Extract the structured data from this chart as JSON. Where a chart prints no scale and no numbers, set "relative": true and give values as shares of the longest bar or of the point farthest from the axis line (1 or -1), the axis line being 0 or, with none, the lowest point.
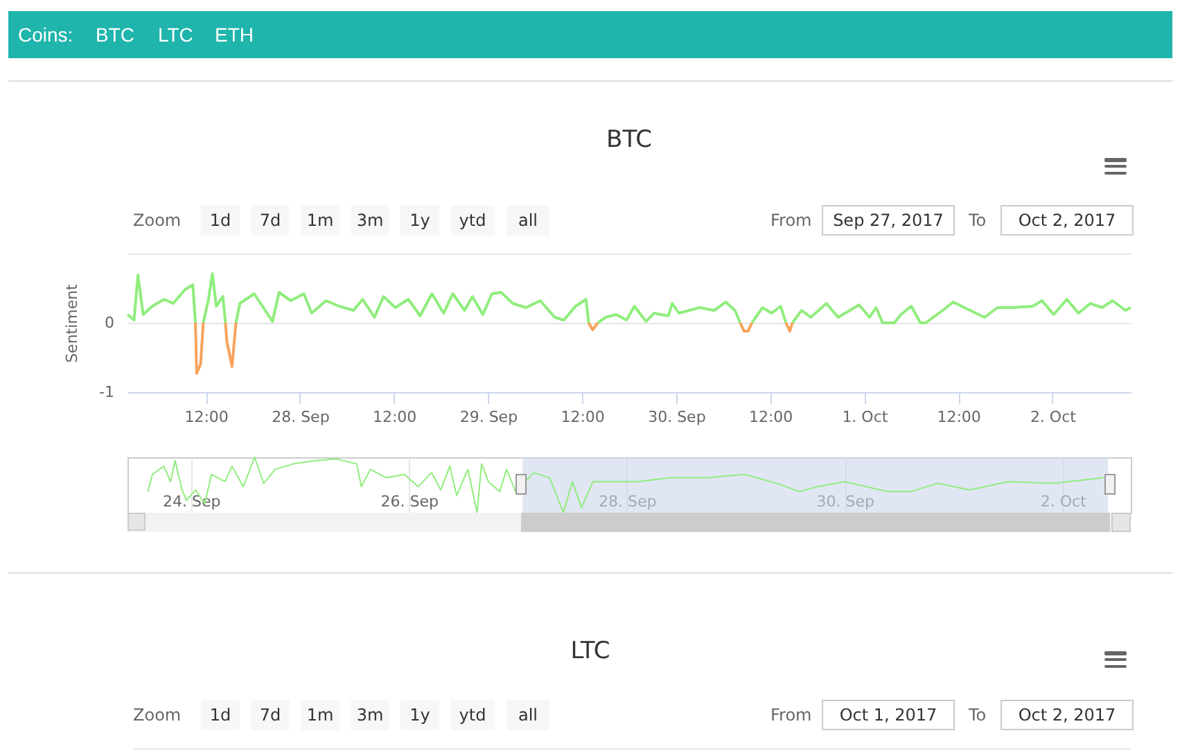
{
  "chart_data": [
    {
      "type": "other",
      "title": "Coins:",
      "annotations": [
        "BTC",
        "LTC",
        "ETH"
      ]
    },
    {
      "type": "line",
      "title": "BTC",
      "ylabel": "Sentiment",
      "annotations": [
        "Zoom",
        "1d",
        "7d",
        "1m",
        "3m",
        "1y",
        "ytd",
        "all",
        "From",
        "Sep 27, 2017",
        "To",
        "Oct 2, 2017"
      ],
      "xlim": [
        "2017-09-27T02:00",
        "2017-10-02T10:00"
      ],
      "xticks": [
        {
          "value": "2017-09-27T12:00",
          "label": "12:00"
        },
        {
          "value": "2017-09-28",
          "label": "28. Sep"
        },
        {
          "value": "2017-09-28T12:00",
          "label": "12:00"
        },
        {
          "value": "2017-09-29",
          "label": "29. Sep"
        },
        {
          "value": "2017-09-29T12:00",
          "label": "12:00"
        },
        {
          "value": "2017-09-30",
          "label": "30. Sep"
        },
        {
          "value": "2017-09-30T12:00",
          "label": "12:00"
        },
        {
          "value": "2017-10-01",
          "label": "1. Oct"
        },
        {
          "value": "2017-10-01T12:00",
          "label": "12:00"
        },
        {
          "value": "2017-10-02",
          "label": "2. Oct"
        }
      ],
      "ylim": [
        -1,
        1
      ],
      "yticks": [
        -1,
        0,
        {
          "value": 1,
          "label": null
        }
      ],
      "grid": "y",
      "x": [
        "2017-09-27T02:00",
        "2017-09-27T02:50",
        "2017-09-27T03:20",
        "2017-09-27T04:00",
        "2017-09-27T05:10",
        "2017-09-27T06:40",
        "2017-09-27T07:50",
        "2017-09-27T09:20",
        "2017-09-27T10:20",
        "2017-09-27T10:40",
        "2017-09-27T10:50",
        "2017-09-27T11:20",
        "2017-09-27T11:40",
        "2017-09-27T12:20",
        "2017-09-27T12:50",
        "2017-09-27T13:20",
        "2017-09-27T14:10",
        "2017-09-27T14:30",
        "2017-09-27T14:40",
        "2017-09-27T15:20",
        "2017-09-27T15:50",
        "2017-09-27T16:20",
        "2017-09-27T18:10",
        "2017-09-27T19:20",
        "2017-09-27T20:30",
        "2017-09-27T21:20",
        "2017-09-27T22:50",
        "2017-09-28T00:30",
        "2017-09-28T01:30",
        "2017-09-28T03:20",
        "2017-09-28T05:00",
        "2017-09-28T06:50",
        "2017-09-28T08:00",
        "2017-09-28T09:30",
        "2017-09-28T10:40",
        "2017-09-28T12:10",
        "2017-09-28T13:50",
        "2017-09-28T15:20",
        "2017-09-28T16:50",
        "2017-09-28T18:20",
        "2017-09-28T19:30",
        "2017-09-28T21:00",
        "2017-09-28T22:00",
        "2017-09-28T23:20",
        "2017-09-29T00:30",
        "2017-09-29T01:40",
        "2017-09-29T03:10",
        "2017-09-29T04:50",
        "2017-09-29T06:40",
        "2017-09-29T08:30",
        "2017-09-29T09:40",
        "2017-09-29T11:10",
        "2017-09-29T12:30",
        "2017-09-29T12:50",
        "2017-09-29T13:20",
        "2017-09-29T14:00",
        "2017-09-29T15:00",
        "2017-09-29T16:20",
        "2017-09-29T17:40",
        "2017-09-29T18:40",
        "2017-09-29T20:10",
        "2017-09-29T21:10",
        "2017-09-29T23:00",
        "2017-09-29T23:30",
        "2017-09-30T00:20",
        "2017-09-30T03:00",
        "2017-09-30T04:50",
        "2017-09-30T06:20",
        "2017-09-30T07:30",
        "2017-09-30T08:10",
        "2017-09-30T08:40",
        "2017-09-30T09:10",
        "2017-09-30T09:40",
        "2017-09-30T11:00",
        "2017-09-30T12:10",
        "2017-09-30T13:20",
        "2017-09-30T14:00",
        "2017-09-30T14:30",
        "2017-09-30T14:50",
        "2017-09-30T16:00",
        "2017-09-30T17:10",
        "2017-09-30T19:10",
        "2017-09-30T20:40",
        "2017-09-30T23:20",
        "2017-10-01T00:40",
        "2017-10-01T01:30",
        "2017-10-01T02:20",
        "2017-10-01T03:10",
        "2017-10-01T03:50",
        "2017-10-01T04:40",
        "2017-10-01T06:00",
        "2017-10-01T07:10",
        "2017-10-01T07:30",
        "2017-10-01T07:50",
        "2017-10-01T10:00",
        "2017-10-01T11:20",
        "2017-10-01T13:30",
        "2017-10-01T15:20",
        "2017-10-01T17:00",
        "2017-10-01T18:50",
        "2017-10-01T21:30",
        "2017-10-01T22:40",
        "2017-10-02T00:10",
        "2017-10-02T01:50",
        "2017-10-02T03:20",
        "2017-10-02T04:50",
        "2017-10-02T06:20",
        "2017-10-02T07:40",
        "2017-10-02T09:20",
        "2017-10-02T10:00"
      ],
      "series": [
        {
          "color": "#90ed7d",
          "values": [
            0.12,
            0.04,
            0.69,
            0.12,
            0.24,
            0.34,
            0.28,
            0.48,
            0.55,
            0,
            null,
            null,
            0,
            0.34,
            0.71,
            0.24,
            0.38,
            0,
            null,
            null,
            0,
            0.28,
            0.42,
            0.22,
            0.02,
            0.44,
            0.32,
            0.42,
            0.14,
            0.32,
            0.24,
            0.18,
            0.34,
            0.08,
            0.38,
            0.22,
            0.34,
            0.1,
            0.42,
            0.14,
            0.42,
            0.18,
            0.38,
            0.12,
            0.42,
            0.44,
            0.28,
            0.22,
            0.32,
            0.08,
            0.04,
            0.24,
            0.34,
            0,
            null,
            0,
            0.08,
            0.12,
            0.04,
            0.24,
            0.02,
            0.14,
            0.1,
            0.28,
            0.14,
            0.22,
            0.18,
            0.3,
            0.18,
            0,
            null,
            null,
            0,
            0.22,
            0.14,
            0.24,
            0,
            null,
            0,
            0.18,
            0.08,
            0.28,
            0.08,
            0.26,
            0.08,
            0.22,
            0,
            0,
            0,
            0.12,
            0.24,
            0,
            0,
            0,
            0.18,
            0.3,
            0.18,
            0.08,
            0.22,
            0.22,
            0.24,
            0.32,
            0.12,
            0.34,
            0.14,
            0.28,
            0.22,
            0.32,
            0.18,
            0.22
          ]
        },
        {
          "color": "#f7a35c",
          "values": [
            null,
            null,
            null,
            null,
            null,
            null,
            null,
            null,
            null,
            0,
            -0.73,
            -0.59,
            0,
            null,
            null,
            null,
            null,
            0,
            -0.26,
            -0.63,
            0,
            null,
            null,
            null,
            null,
            null,
            null,
            null,
            null,
            null,
            null,
            null,
            null,
            null,
            null,
            null,
            null,
            null,
            null,
            null,
            null,
            null,
            null,
            null,
            null,
            null,
            null,
            null,
            null,
            null,
            null,
            null,
            null,
            0,
            -0.1,
            0,
            null,
            null,
            null,
            null,
            null,
            null,
            null,
            null,
            null,
            null,
            null,
            null,
            null,
            0,
            -0.12,
            -0.12,
            0,
            null,
            null,
            null,
            0,
            -0.12,
            0,
            null,
            null,
            null,
            null,
            null,
            null,
            null,
            null,
            null,
            null,
            null,
            null,
            null,
            null,
            null,
            null,
            null,
            null,
            null,
            null,
            null,
            null,
            null,
            null,
            null,
            null,
            null,
            null,
            null,
            null,
            null
          ]
        }
      ]
    },
    {
      "type": "line",
      "relative": true,
      "tick_labels": "x",
      "grid": "x",
      "xlim": [
        "2017-09-23T10:00",
        "2017-10-02T15:00"
      ],
      "xticks": [
        {
          "value": "2017-09-24",
          "label": "24. Sep"
        },
        {
          "value": "2017-09-26",
          "label": "26. Sep"
        },
        {
          "value": "2017-09-28",
          "label": "28. Sep"
        },
        {
          "value": "2017-09-30",
          "label": "30. Sep"
        },
        {
          "value": "2017-10-02",
          "label": "2. Oct"
        }
      ],
      "bands": [
        {
          "axis": "x",
          "from": "2017-09-27T01:00",
          "to": "2017-10-02T10:00",
          "color": "#ccd6eb"
        }
      ],
      "x": [
        "2017-09-23T14:30",
        "2017-09-23T15:30",
        "2017-09-23T18:00",
        "2017-09-23T19:30",
        "2017-09-23T20:30",
        "2017-09-23T22:00",
        "2017-09-23T23:00",
        "2017-09-24T01:00",
        "2017-09-24T03:00",
        "2017-09-24T04:30",
        "2017-09-24T07:30",
        "2017-09-24T09:00",
        "2017-09-24T11:30",
        "2017-09-24T14:00",
        "2017-09-24T16:00",
        "2017-09-24T18:30",
        "2017-09-24T22:30",
        "2017-09-25T03:30",
        "2017-09-25T08:00",
        "2017-09-25T12:30",
        "2017-09-25T13:30",
        "2017-09-25T15:30",
        "2017-09-25T19:00",
        "2017-09-25T23:00",
        "2017-09-26T02:00",
        "2017-09-26T05:00",
        "2017-09-26T07:00",
        "2017-09-26T09:00",
        "2017-09-26T10:30",
        "2017-09-26T13:00",
        "2017-09-26T15:00",
        "2017-09-26T16:00",
        "2017-09-26T17:30",
        "2017-09-26T20:00",
        "2017-09-26T21:30",
        "2017-09-26T23:30",
        "2017-09-27T03:30",
        "2017-09-27T07:00",
        "2017-09-27T10:00",
        "2017-09-27T12:00",
        "2017-09-27T14:00",
        "2017-09-27T16:30",
        "2017-09-27T21:30",
        "2017-09-28T02:30",
        "2017-09-28T09:30",
        "2017-09-28T17:30",
        "2017-09-29T02:00",
        "2017-09-29T09:00",
        "2017-09-29T14:00",
        "2017-09-29T18:00",
        "2017-09-30T00:00",
        "2017-09-30T09:30",
        "2017-09-30T14:30",
        "2017-09-30T20:30",
        "2017-10-01T03:30",
        "2017-10-01T12:00",
        "2017-10-01T22:00",
        "2017-10-02T09:00"
      ],
      "series": [
        {
          "color": "#90ed7d",
          "values": [
            0.38,
            0.69,
            0.84,
            0.56,
            0.94,
            0.41,
            0.22,
            0.41,
            0.16,
            0.69,
            0.56,
            0.84,
            0.47,
            1,
            0.53,
            0.78,
            0.88,
            0.94,
            0.97,
            0.88,
            0.47,
            0.78,
            0.63,
            0.69,
            0.47,
            0.72,
            0.41,
            0.84,
            0.31,
            0.78,
            0,
            0.88,
            0.56,
            0.38,
            0.78,
            0.38,
            0.72,
            0.63,
            0,
            0.56,
            0.09,
            0.56,
            0.56,
            0.56,
            0.63,
            0.63,
            0.69,
            0.53,
            0.38,
            0.47,
            0.56,
            0.38,
            0.38,
            0.53,
            0.41,
            0.56,
            0.53,
            0.63
          ]
        }
      ]
    },
    {
      "type": "other",
      "title": "LTC",
      "annotations": [
        "Zoom",
        "1d",
        "7d",
        "1m",
        "3m",
        "1y",
        "ytd",
        "all",
        "From",
        "Oct 1, 2017",
        "To",
        "Oct 2, 2017"
      ]
    }
  ]
}
